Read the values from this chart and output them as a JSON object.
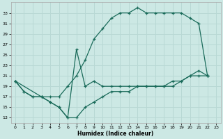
{
  "xlabel": "Humidex (Indice chaleur)",
  "bg_color": "#cce8e4",
  "grid_color": "#b8d8d4",
  "line_color": "#1a6b5a",
  "xlim": [
    -0.5,
    23.5
  ],
  "ylim": [
    12,
    35
  ],
  "yticks": [
    13,
    15,
    17,
    19,
    21,
    23,
    25,
    27,
    29,
    31,
    33
  ],
  "xticks": [
    0,
    1,
    2,
    3,
    4,
    5,
    6,
    7,
    8,
    9,
    10,
    11,
    12,
    13,
    14,
    15,
    16,
    17,
    18,
    19,
    20,
    21,
    22,
    23
  ],
  "curve_top_x": [
    0,
    3,
    4,
    5,
    6,
    7,
    8,
    9,
    10,
    11,
    12,
    13,
    14,
    15,
    16,
    17,
    18,
    19,
    20,
    21,
    22
  ],
  "curve_top_y": [
    20,
    17,
    17,
    17,
    19,
    21,
    24,
    28,
    30,
    32,
    33,
    33,
    34,
    33,
    33,
    33,
    33,
    33,
    32,
    31,
    21
  ],
  "curve_mid_x": [
    0,
    1,
    2,
    3,
    4,
    5,
    6,
    7,
    8,
    9,
    10,
    11,
    12,
    13,
    14,
    15,
    16,
    17,
    18,
    19,
    20,
    21,
    22
  ],
  "curve_mid_y": [
    20,
    18,
    17,
    17,
    16,
    15,
    13,
    13,
    15,
    16,
    17,
    18,
    18,
    18,
    19,
    19,
    19,
    19,
    19,
    20,
    21,
    21,
    21
  ],
  "curve_spike_x": [
    0,
    1,
    2,
    3,
    4,
    5,
    6,
    7,
    8,
    9,
    10,
    11,
    12,
    13,
    14,
    15,
    16,
    17,
    18,
    19,
    20,
    21,
    22
  ],
  "curve_spike_y": [
    20,
    18,
    17,
    17,
    16,
    15,
    13,
    26,
    19,
    20,
    19,
    19,
    19,
    19,
    19,
    19,
    19,
    19,
    20,
    20,
    21,
    22,
    21
  ]
}
